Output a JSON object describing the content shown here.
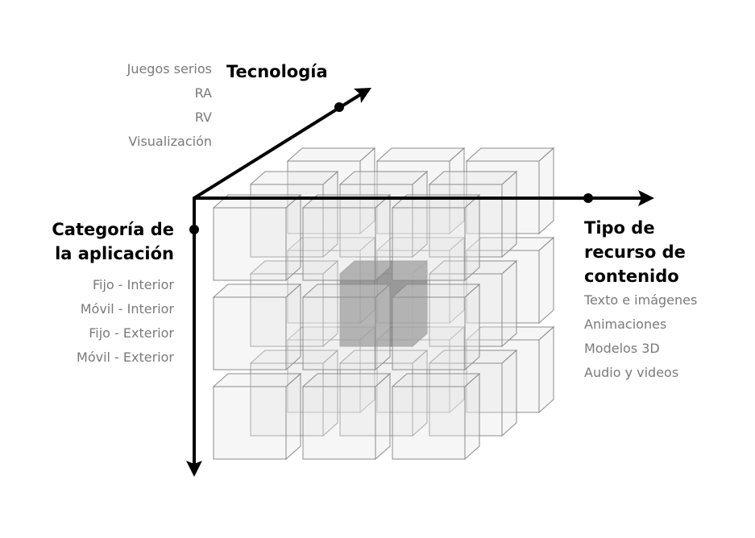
{
  "axes": {
    "technology": {
      "title": "Tecnología",
      "items": [
        "Juegos serios",
        "RA",
        "RV",
        "Visualización"
      ]
    },
    "category": {
      "title_lines": [
        "Categoría de",
        "la aplicación"
      ],
      "items": [
        "Fijo - Interior",
        "Móvil  - Interior",
        "Fijo - Exterior",
        "Móvil - Exterior"
      ]
    },
    "resource": {
      "title_lines": [
        "Tipo de",
        "recurso de",
        "contenido"
      ],
      "items": [
        "Texto e imágenes",
        "Animaciones",
        "Modelos 3D",
        "Audio y videos"
      ]
    }
  },
  "cube": {
    "size": 3,
    "highlighted_cell": "center"
  },
  "colors": {
    "axis": "#000000",
    "cube_face": "#e4e4e4",
    "cube_edge": "#8c8c8c",
    "highlight": "#7a7a7a",
    "label_gray": "#7a7a7a"
  }
}
